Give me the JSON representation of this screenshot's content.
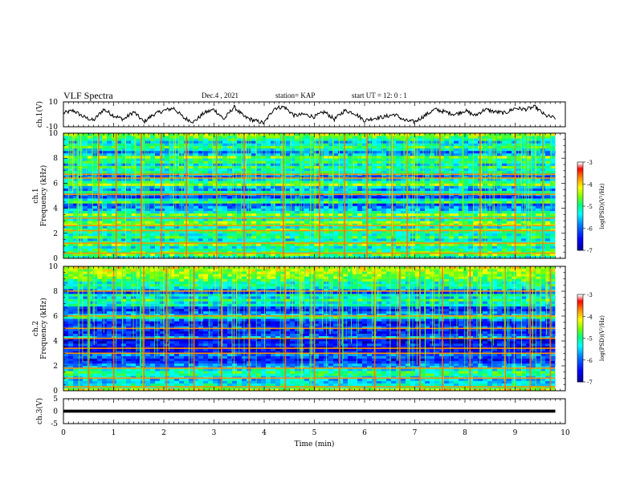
{
  "header": {
    "title": "VLF Spectra",
    "date": "Dec.4 , 2021",
    "station": "station= KAP",
    "start": "start UT =  12: 0  : 1"
  },
  "chart_data": [
    {
      "type": "line",
      "panel": "ch1-waveform",
      "ylabel": "ch.1(V)",
      "ylim": [
        -10,
        10
      ],
      "yticks": [
        "10",
        "-10"
      ],
      "xlim": [
        0,
        10
      ],
      "series": [
        {
          "x": [
            0,
            0.2,
            0.4,
            0.6,
            0.8,
            1.0,
            1.2,
            1.4,
            1.6,
            1.8,
            2.0,
            2.2,
            2.4,
            2.6,
            2.8,
            3.0,
            3.2,
            3.4,
            3.6,
            3.8,
            4.0,
            4.2,
            4.4,
            4.6,
            4.8,
            5.0,
            5.2,
            5.4,
            5.6,
            5.8,
            6.0,
            6.2,
            6.4,
            6.6,
            6.8,
            7.0,
            7.2,
            7.4,
            7.6,
            7.8,
            8.0,
            8.2,
            8.4,
            8.6,
            8.8,
            9.0,
            9.2,
            9.4,
            9.6,
            9.8
          ],
          "values": [
            1,
            3,
            -2,
            -5,
            4,
            -1,
            -4,
            2,
            -6,
            0,
            3,
            5,
            -3,
            -6,
            1,
            4,
            -4,
            6,
            -2,
            -5,
            -7,
            5,
            6,
            -1,
            0,
            -2,
            2,
            -4,
            3,
            1,
            -5,
            -3,
            -2,
            0,
            -5,
            -6,
            -1,
            4,
            2,
            0,
            3,
            -1,
            4,
            2,
            1,
            5,
            4,
            6,
            -1,
            -3
          ],
          "color": "#000000"
        }
      ],
      "grid": false
    },
    {
      "type": "heatmap",
      "panel": "ch1-spectrogram",
      "ylabel": "ch.1",
      "ylabel2": "Frequency (kHz)",
      "xlim": [
        0,
        10
      ],
      "ylim": [
        0,
        10
      ],
      "yticks": [
        "0",
        "2",
        "4",
        "6",
        "8",
        "10"
      ],
      "colorbar": {
        "label": "log(PSD)(V²/Hz)",
        "min": -7,
        "max": -3,
        "ticks": [
          "-3",
          "-4",
          "-5",
          "-6",
          "-7"
        ]
      },
      "band_values": [
        -5.2,
        -4.6,
        -4.8,
        -5.0,
        -5.3,
        -4.6,
        -5.0,
        -5.4,
        -4.8,
        -5.2,
        -5.0,
        -4.7,
        -5.3,
        -4.6,
        -4.5,
        -5.2,
        -5.1,
        -4.5,
        -5.2,
        -5.6,
        -5.8,
        -6.0,
        -4.8,
        -5.2,
        -6.2,
        -5.9,
        -5.1,
        -5.8,
        -5.5,
        -4.4,
        -4.9,
        -5.4,
        -6.0,
        -5.8,
        -5.1,
        -5.2,
        -4.8,
        -5.5,
        -4.9,
        -5.1,
        -4.5,
        -5.6,
        -5.9,
        -5.3,
        -4.8,
        -5.2,
        -5.6,
        -5.0,
        -4.7,
        -4.4
      ],
      "vertical_spikes_min": [
        0.7,
        1.05,
        1.55,
        1.95,
        2.45,
        3.05,
        3.6,
        4.38,
        5.1,
        5.6,
        6.05,
        6.55,
        6.85,
        7.5,
        8.3,
        9.0,
        9.55
      ]
    },
    {
      "type": "heatmap",
      "panel": "ch2-spectrogram",
      "ylabel": "ch.2",
      "ylabel2": "Frequency (kHz)",
      "xlim": [
        0,
        10
      ],
      "ylim": [
        0,
        10
      ],
      "yticks": [
        "0",
        "2",
        "4",
        "6",
        "8",
        "10"
      ],
      "colorbar": {
        "label": "log(PSD)(V²/Hz)",
        "min": -7,
        "max": -3,
        "ticks": [
          "-3",
          "-4",
          "-5",
          "-6",
          "-7"
        ]
      },
      "band_values": [
        -4.2,
        -5.0,
        -5.2,
        -5.4,
        -5.5,
        -5.3,
        -5.0,
        -4.9,
        -5.3,
        -5.7,
        -5.8,
        -6.2,
        -6.4,
        -6.1,
        -5.9,
        -6.4,
        -6.5,
        -6.6,
        -6.2,
        -6.5,
        -6.6,
        -5.6,
        -6.2,
        -6.4,
        -6.3,
        -6.0,
        -6.3,
        -6.4,
        -5.9,
        -5.0,
        -5.6,
        -5.9,
        -6.3,
        -6.1,
        -5.2,
        -5.4,
        -4.8,
        -5.5,
        -5.1,
        -6.2,
        -5.8,
        -5.3,
        -5.0,
        -5.2,
        -4.8,
        -4.6,
        -4.5,
        -4.4,
        -4.3,
        -4.2
      ],
      "vertical_spikes_min": [
        0.5,
        1.0,
        1.6,
        2.05,
        2.6,
        3.15,
        3.7,
        4.42,
        5.0,
        5.5,
        6.2,
        6.7,
        7.1,
        7.55,
        8.1,
        8.8,
        9.3,
        9.7
      ]
    },
    {
      "type": "line",
      "panel": "ch3-waveform",
      "ylabel": "ch.3(V)",
      "ylim": [
        -5,
        5
      ],
      "yticks": [
        "5",
        "0",
        "-5"
      ],
      "xlim": [
        0,
        10
      ],
      "xlabel": "Time (min)",
      "xticks": [
        "0",
        "1",
        "2",
        "3",
        "4",
        "5",
        "6",
        "7",
        "8",
        "9",
        "10"
      ],
      "series": [
        {
          "x": [
            0,
            9.8
          ],
          "values": [
            0,
            0
          ],
          "color": "#000000",
          "thickness_v": 1.2
        }
      ]
    }
  ],
  "colors": {
    "scale": [
      "#00008b",
      "#0000ff",
      "#0080ff",
      "#00ffff",
      "#00ff80",
      "#80ff00",
      "#ffff00",
      "#ff8000",
      "#ff0000",
      "#ffffff"
    ]
  }
}
